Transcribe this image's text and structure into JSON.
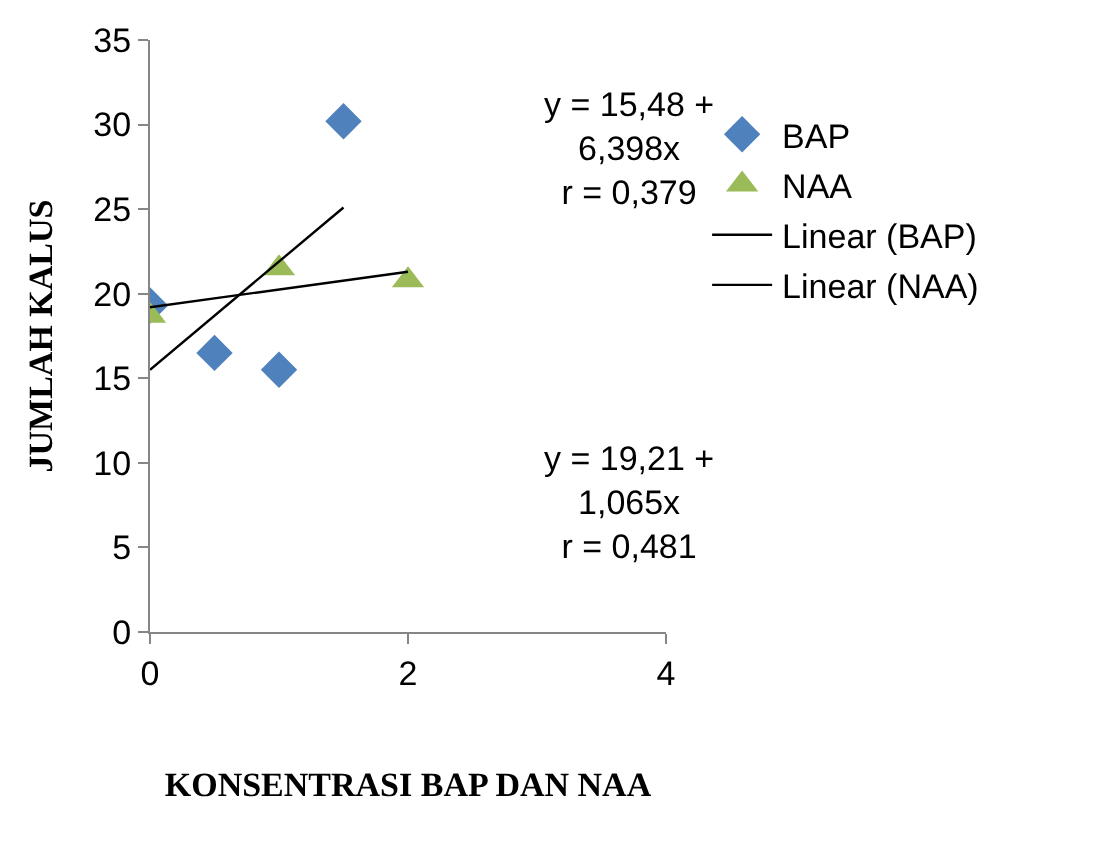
{
  "chart_data": {
    "type": "scatter",
    "xlabel": "KONSENTRASI BAP DAN NAA",
    "ylabel": "JUMLAH KALUS",
    "xlim": [
      0,
      4
    ],
    "xticks": [
      0,
      2,
      4
    ],
    "ylim": [
      0,
      35
    ],
    "yticks": [
      0,
      5,
      10,
      15,
      20,
      25,
      30,
      35
    ],
    "legend": "right",
    "series": [
      {
        "name": "BAP",
        "marker": "diamond",
        "color": "#4f81bd",
        "x": [
          0,
          0.5,
          1,
          1.5
        ],
        "values": [
          19.3,
          16.5,
          15.5,
          30.2
        ]
      },
      {
        "name": "NAA",
        "marker": "triangle",
        "color": "#9bbb59",
        "x": [
          0,
          1,
          2
        ],
        "values": [
          18.7,
          21.5,
          20.8
        ]
      },
      {
        "name": "Linear (BAP)",
        "type": "line",
        "color": "#000000",
        "x": [
          0,
          1.5
        ],
        "values": [
          15.5,
          25.1
        ]
      },
      {
        "name": "Linear (NAA)",
        "type": "line",
        "color": "#000000",
        "x": [
          0,
          2
        ],
        "values": [
          19.2,
          21.3
        ]
      }
    ],
    "annotations": [
      "y = 15,48 +\n6,398x\nr = 0,379",
      "y = 19,21 +\n1,065x\nr = 0,481"
    ]
  }
}
